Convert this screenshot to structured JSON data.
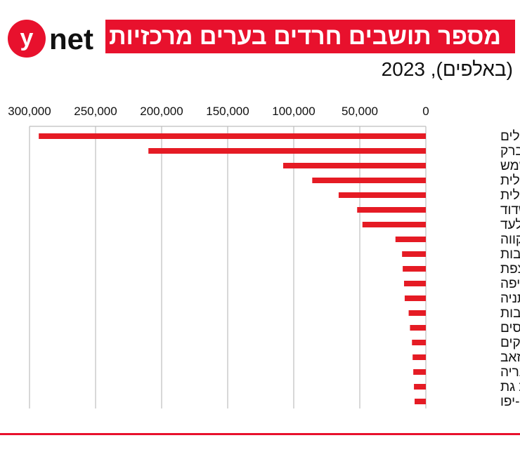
{
  "brand": {
    "logo_y": "y",
    "logo_text": "net",
    "logo_red": "#e8112d"
  },
  "header": {
    "title": "מספר תושבים חרדים בערים מרכזיות",
    "subtitle": "(באלפים), 2023"
  },
  "colors": {
    "accent": "#e8112d",
    "bar": "#e51b24",
    "grid": "#bdbdbd",
    "text": "#111111"
  },
  "chart_data": {
    "type": "bar",
    "orientation": "horizontal",
    "x_axis_side": "top",
    "x_reversed": true,
    "xlim": [
      0,
      300000
    ],
    "x_ticks": [
      0,
      50000,
      100000,
      150000,
      200000,
      250000,
      300000
    ],
    "x_tick_labels": [
      "0",
      "50,000",
      "100,000",
      "150,000",
      "200,000",
      "250,000",
      "300,000"
    ],
    "grid": true,
    "categories": [
      "ירושלים",
      "בני ברק",
      "בית שמש",
      "מודיעין עילית",
      "ביתר עילית",
      "אשדוד",
      "אלעד",
      "פתח תקווה",
      "נתיבות",
      "צפת",
      "חיפה",
      "נתניה",
      "רחובות",
      "רכסים",
      "אופקים",
      "גבעת זאב",
      "טבריה",
      "קריית גת",
      "תל אביב-יפו"
    ],
    "values": [
      293000,
      210000,
      108000,
      86000,
      66000,
      52000,
      48000,
      23000,
      18000,
      17500,
      16500,
      16000,
      13000,
      12000,
      10500,
      10000,
      9500,
      9000,
      8500
    ]
  }
}
